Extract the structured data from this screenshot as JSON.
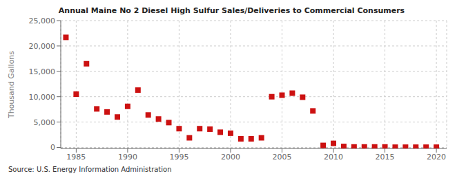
{
  "chart_data": {
    "type": "scatter",
    "title": "Annual Maine No 2 Diesel High Sulfur Sales/Deliveries to Commercial Consumers",
    "ylabel": "Thousand Gallons",
    "annotations": [
      "Source: U.S. Energy Information Administration"
    ],
    "color": "#cc1111",
    "marker": "square",
    "grid": true,
    "xlim": [
      1983.5,
      2021
    ],
    "ylim": [
      -200,
      25000
    ],
    "xticks": [
      1985,
      1990,
      1995,
      2000,
      2005,
      2010,
      2015,
      2020
    ],
    "yticks": [
      0,
      {
        "value": 5000,
        "label": "5,000"
      },
      {
        "value": 10000,
        "label": "10,000"
      },
      {
        "value": 15000,
        "label": "15,000"
      },
      {
        "value": 20000,
        "label": "20,000"
      },
      {
        "value": 25000,
        "label": "25,000"
      }
    ],
    "x": [
      1984,
      1985,
      1986,
      1987,
      1988,
      1989,
      1990,
      1991,
      1992,
      1993,
      1994,
      1995,
      1996,
      1997,
      1998,
      1999,
      2000,
      2001,
      2002,
      2003,
      2004,
      2005,
      2006,
      2007,
      2008,
      2009,
      2010,
      2011,
      2012,
      2013,
      2014,
      2015,
      2016,
      2017,
      2018,
      2019,
      2020
    ],
    "values": [
      21700,
      10500,
      16500,
      7600,
      7000,
      6000,
      8100,
      11300,
      6400,
      5600,
      4900,
      3700,
      1900,
      3700,
      3600,
      3000,
      2800,
      1700,
      1700,
      1900,
      10000,
      10300,
      10700,
      9900,
      7200,
      400,
      800,
      200,
      100,
      100,
      100,
      100,
      50,
      50,
      50,
      50,
      50
    ]
  }
}
